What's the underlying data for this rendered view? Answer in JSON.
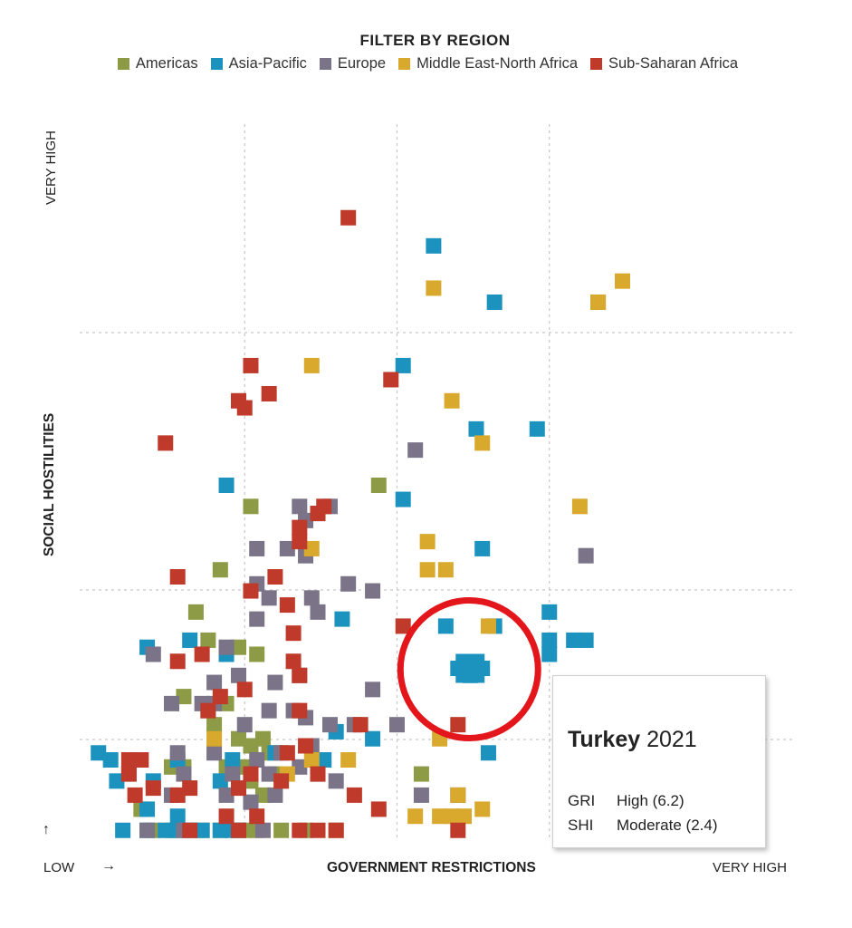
{
  "legend": {
    "title": "FILTER BY REGION",
    "items": [
      {
        "label": "Americas",
        "color": "#8d9a46"
      },
      {
        "label": "Asia-Pacific",
        "color": "#1b93be"
      },
      {
        "label": "Europe",
        "color": "#7b7387"
      },
      {
        "label": "Middle East-North Africa",
        "color": "#d8a92c"
      },
      {
        "label": "Sub-Saharan Africa",
        "color": "#bf3a2b"
      }
    ]
  },
  "axes": {
    "y_top": "VERY HIGH",
    "y_title": "SOCIAL HOSTILITIES",
    "y_arrow": "↑",
    "x_low": "LOW",
    "x_arrow": "→",
    "x_title": "GOVERNMENT RESTRICTIONS",
    "x_high": "VERY HIGH"
  },
  "tooltip": {
    "country": "Turkey",
    "year": "2021",
    "rows": [
      {
        "label": "GRI",
        "value": "High (6.2)"
      },
      {
        "label": "SHI",
        "value": "Moderate (2.4)"
      }
    ]
  },
  "highlight_color": "#e3161b",
  "chart_data": {
    "type": "scatter",
    "xlabel": "GOVERNMENT RESTRICTIONS",
    "ylabel": "SOCIAL HOSTILITIES",
    "xlim": [
      0,
      10
    ],
    "ylim": [
      0,
      10
    ],
    "grid": true,
    "legend_position": "top",
    "highlight": {
      "name": "Turkey",
      "x": 6.2,
      "y": 2.4
    },
    "series": [
      {
        "name": "Americas",
        "color": "#8d9a46",
        "points": [
          [
            4.7,
            5.0
          ],
          [
            2.6,
            4.7
          ],
          [
            2.1,
            3.8
          ],
          [
            1.7,
            3.2
          ],
          [
            1.9,
            2.8
          ],
          [
            2.4,
            2.7
          ],
          [
            2.7,
            2.6
          ],
          [
            1.5,
            2.0
          ],
          [
            1.9,
            1.8
          ],
          [
            2.2,
            1.9
          ],
          [
            2.0,
            1.6
          ],
          [
            2.4,
            1.4
          ],
          [
            2.6,
            1.3
          ],
          [
            2.8,
            1.4
          ],
          [
            2.9,
            1.2
          ],
          [
            1.3,
            1.0
          ],
          [
            1.5,
            1.0
          ],
          [
            2.2,
            1.0
          ],
          [
            2.5,
            1.0
          ],
          [
            2.6,
            0.8
          ],
          [
            2.8,
            0.6
          ],
          [
            3.0,
            0.9
          ],
          [
            5.4,
            0.9
          ],
          [
            0.8,
            0.4
          ],
          [
            1.0,
            0.1
          ],
          [
            1.3,
            0.1
          ],
          [
            1.6,
            0.1
          ],
          [
            1.8,
            0.1
          ],
          [
            2.1,
            0.1
          ],
          [
            2.5,
            0.1
          ],
          [
            2.7,
            0.1
          ],
          [
            3.1,
            0.1
          ],
          [
            3.5,
            0.1
          ],
          [
            4.0,
            0.1
          ]
        ]
      },
      {
        "name": "Asia-Pacific",
        "color": "#1b93be",
        "points": [
          [
            5.6,
            8.4
          ],
          [
            6.6,
            7.6
          ],
          [
            8.3,
            7.6
          ],
          [
            5.1,
            6.7
          ],
          [
            6.3,
            5.8
          ],
          [
            7.3,
            5.8
          ],
          [
            2.2,
            5.0
          ],
          [
            5.1,
            4.8
          ],
          [
            6.4,
            4.1
          ],
          [
            7.5,
            3.2
          ],
          [
            4.1,
            3.1
          ],
          [
            5.8,
            3.0
          ],
          [
            6.6,
            3.0
          ],
          [
            7.5,
            2.8
          ],
          [
            7.9,
            2.8
          ],
          [
            8.1,
            2.8
          ],
          [
            0.9,
            2.7
          ],
          [
            1.6,
            2.8
          ],
          [
            2.2,
            2.6
          ],
          [
            7.5,
            2.6
          ],
          [
            6.0,
            2.4
          ],
          [
            6.2,
            2.4
          ],
          [
            6.4,
            2.4
          ],
          [
            6.2,
            2.3
          ],
          [
            4.0,
            1.5
          ],
          [
            4.6,
            1.4
          ],
          [
            3.0,
            1.2
          ],
          [
            6.5,
            1.2
          ],
          [
            0.1,
            1.2
          ],
          [
            0.3,
            1.1
          ],
          [
            1.4,
            1.1
          ],
          [
            2.3,
            1.1
          ],
          [
            3.8,
            1.1
          ],
          [
            0.4,
            0.8
          ],
          [
            1.0,
            0.8
          ],
          [
            2.1,
            0.8
          ],
          [
            0.9,
            0.4
          ],
          [
            1.4,
            0.3
          ],
          [
            0.5,
            0.1
          ],
          [
            0.9,
            0.1
          ],
          [
            1.2,
            0.1
          ],
          [
            1.4,
            0.1
          ],
          [
            1.6,
            0.1
          ],
          [
            1.8,
            0.1
          ],
          [
            2.1,
            0.1
          ],
          [
            2.3,
            0.1
          ],
          [
            2.4,
            0.1
          ]
        ]
      },
      {
        "name": "Europe",
        "color": "#7b7387",
        "points": [
          [
            5.3,
            5.5
          ],
          [
            3.4,
            4.7
          ],
          [
            3.5,
            4.5
          ],
          [
            3.7,
            4.6
          ],
          [
            3.9,
            4.7
          ],
          [
            2.7,
            4.1
          ],
          [
            3.2,
            4.1
          ],
          [
            3.5,
            4.0
          ],
          [
            4.2,
            3.6
          ],
          [
            4.6,
            3.5
          ],
          [
            2.7,
            3.6
          ],
          [
            2.9,
            3.4
          ],
          [
            3.6,
            3.4
          ],
          [
            3.7,
            3.2
          ],
          [
            2.7,
            3.1
          ],
          [
            1.0,
            2.6
          ],
          [
            2.2,
            2.7
          ],
          [
            2.0,
            2.2
          ],
          [
            2.4,
            2.3
          ],
          [
            3.0,
            2.2
          ],
          [
            3.4,
            2.3
          ],
          [
            4.6,
            2.1
          ],
          [
            1.3,
            1.9
          ],
          [
            1.8,
            1.9
          ],
          [
            2.0,
            1.9
          ],
          [
            2.5,
            1.6
          ],
          [
            2.9,
            1.8
          ],
          [
            3.3,
            1.8
          ],
          [
            3.5,
            1.7
          ],
          [
            3.9,
            1.6
          ],
          [
            4.3,
            1.6
          ],
          [
            1.4,
            1.2
          ],
          [
            2.0,
            1.2
          ],
          [
            2.7,
            1.1
          ],
          [
            3.1,
            1.2
          ],
          [
            3.4,
            1.0
          ],
          [
            0.6,
            0.9
          ],
          [
            1.5,
            0.9
          ],
          [
            2.3,
            0.9
          ],
          [
            2.9,
            0.9
          ],
          [
            3.7,
            0.9
          ],
          [
            4.0,
            0.8
          ],
          [
            3.6,
            1.3
          ],
          [
            5.4,
            0.6
          ],
          [
            6.0,
            0.6
          ],
          [
            1.3,
            0.6
          ],
          [
            2.2,
            0.6
          ],
          [
            2.6,
            0.5
          ],
          [
            3.0,
            0.6
          ],
          [
            0.9,
            0.1
          ],
          [
            1.5,
            0.1
          ],
          [
            2.8,
            0.1
          ],
          [
            5.0,
            1.6
          ],
          [
            8.1,
            4.0
          ]
        ]
      },
      {
        "name": "Middle East-North Africa",
        "color": "#d8a92c",
        "points": [
          [
            8.7,
            7.9
          ],
          [
            8.3,
            7.6
          ],
          [
            5.6,
            7.8
          ],
          [
            3.6,
            6.7
          ],
          [
            5.9,
            6.2
          ],
          [
            6.4,
            5.6
          ],
          [
            8.0,
            4.7
          ],
          [
            5.5,
            4.2
          ],
          [
            3.6,
            4.1
          ],
          [
            5.5,
            3.8
          ],
          [
            5.8,
            3.8
          ],
          [
            6.5,
            3.0
          ],
          [
            2.0,
            1.4
          ],
          [
            5.7,
            1.4
          ],
          [
            3.6,
            1.1
          ],
          [
            4.2,
            1.1
          ],
          [
            6.0,
            0.6
          ],
          [
            6.4,
            0.4
          ],
          [
            5.3,
            0.3
          ],
          [
            5.7,
            0.3
          ],
          [
            5.9,
            0.3
          ],
          [
            6.1,
            0.3
          ],
          [
            3.2,
            0.9
          ]
        ]
      },
      {
        "name": "Sub-Saharan Africa",
        "color": "#bf3a2b",
        "points": [
          [
            4.2,
            8.8
          ],
          [
            2.6,
            6.7
          ],
          [
            4.9,
            6.5
          ],
          [
            2.4,
            6.2
          ],
          [
            2.5,
            6.1
          ],
          [
            2.9,
            6.3
          ],
          [
            1.2,
            5.6
          ],
          [
            3.7,
            4.6
          ],
          [
            3.8,
            4.7
          ],
          [
            3.4,
            4.4
          ],
          [
            3.4,
            4.2
          ],
          [
            1.4,
            3.7
          ],
          [
            3.0,
            3.7
          ],
          [
            2.6,
            3.5
          ],
          [
            3.2,
            3.3
          ],
          [
            5.1,
            3.0
          ],
          [
            3.3,
            2.9
          ],
          [
            1.4,
            2.5
          ],
          [
            1.8,
            2.6
          ],
          [
            3.3,
            2.5
          ],
          [
            3.4,
            2.3
          ],
          [
            2.1,
            2.0
          ],
          [
            2.5,
            2.1
          ],
          [
            1.9,
            1.8
          ],
          [
            3.4,
            1.8
          ],
          [
            4.4,
            1.6
          ],
          [
            6.0,
            1.6
          ],
          [
            3.2,
            1.2
          ],
          [
            3.5,
            1.3
          ],
          [
            0.6,
            1.1
          ],
          [
            0.8,
            1.1
          ],
          [
            0.6,
            0.9
          ],
          [
            1.0,
            0.7
          ],
          [
            1.6,
            0.7
          ],
          [
            2.4,
            0.7
          ],
          [
            2.6,
            0.9
          ],
          [
            3.1,
            0.8
          ],
          [
            3.7,
            0.9
          ],
          [
            0.7,
            0.6
          ],
          [
            1.4,
            0.6
          ],
          [
            4.3,
            0.6
          ],
          [
            4.7,
            0.4
          ],
          [
            2.2,
            0.3
          ],
          [
            2.7,
            0.3
          ],
          [
            6.0,
            0.1
          ],
          [
            1.6,
            0.1
          ],
          [
            2.4,
            0.1
          ],
          [
            3.4,
            0.1
          ],
          [
            3.7,
            0.1
          ],
          [
            4.0,
            0.1
          ]
        ]
      }
    ]
  }
}
